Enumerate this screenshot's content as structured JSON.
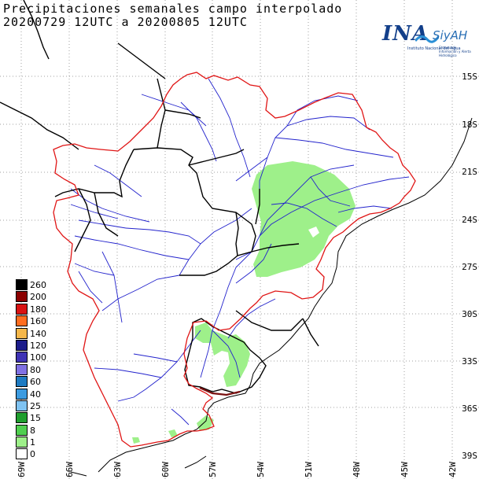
{
  "title": {
    "line1": "Precipitaciones semanales campo interpolado",
    "line2": "20200729 12UTC a 20200805 12UTC"
  },
  "logo": {
    "name": "INA",
    "brand": "SiyAH",
    "subtitle": "Instituto Nacional del Agua",
    "subtitle2": "Sistema de Información y Alerta Hidrológico"
  },
  "lat_labels": [
    "15S",
    "18S",
    "21S",
    "24S",
    "27S",
    "30S",
    "33S",
    "36S",
    "39S"
  ],
  "lon_labels": [
    "69W",
    "66W",
    "63W",
    "60W",
    "57W",
    "54W",
    "51W",
    "48W",
    "45W",
    "42W"
  ],
  "legend": [
    {
      "label": "260",
      "color": "#000000"
    },
    {
      "label": "200",
      "color": "#8b0000"
    },
    {
      "label": "180",
      "color": "#d91313"
    },
    {
      "label": "160",
      "color": "#ff6d1f"
    },
    {
      "label": "140",
      "color": "#f5b74a"
    },
    {
      "label": "120",
      "color": "#1c1c8a"
    },
    {
      "label": "100",
      "color": "#3f33b5"
    },
    {
      "label": "80",
      "color": "#8071e3"
    },
    {
      "label": "60",
      "color": "#1e7bc2"
    },
    {
      "label": "40",
      "color": "#3c9be0"
    },
    {
      "label": "25",
      "color": "#7fc3f2"
    },
    {
      "label": "15",
      "color": "#1f9e2d"
    },
    {
      "label": "8",
      "color": "#4fcf4f"
    },
    {
      "label": "1",
      "color": "#9ef08a"
    },
    {
      "label": "0",
      "color": "#ffffff"
    }
  ],
  "colors": {
    "basin_outline": "#e01515",
    "rivers": "#2222cc",
    "borders": "#000000",
    "coast": "#000000",
    "rain_fill": "#9ef08a"
  }
}
